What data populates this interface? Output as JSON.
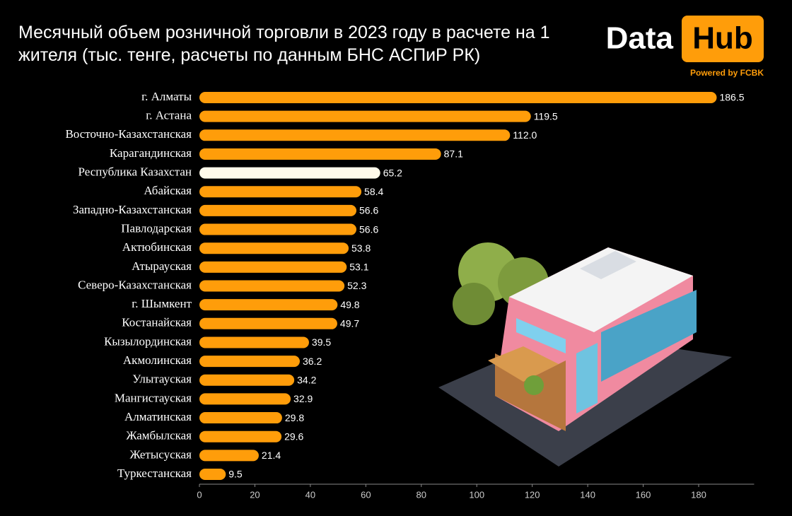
{
  "chart_data": {
    "type": "bar",
    "orientation": "horizontal",
    "title": "Месячный объем розничной торговли в 2023 году в расчете на 1 жителя (тыс. тенге, расчеты по данным БНС АСПиР РК)",
    "categories": [
      "г. Алматы",
      "г. Астана",
      "Восточно-Казахстанская",
      "Карагандинская",
      "Республика Казахстан",
      "Абайская",
      "Западно-Казахстанская",
      "Павлодарская",
      "Актюбинская",
      "Атырауская",
      "Северо-Казахстанская",
      "г. Шымкент",
      "Костанайская",
      "Кызылординская",
      "Акмолинская",
      "Улытауская",
      "Мангистауская",
      "Алматинская",
      "Жамбылская",
      "Жетысуская",
      "Туркестанская"
    ],
    "values": [
      186.5,
      119.5,
      112.0,
      87.1,
      65.2,
      58.4,
      56.6,
      56.6,
      53.8,
      53.1,
      52.3,
      49.8,
      49.7,
      39.5,
      36.2,
      34.2,
      32.9,
      29.8,
      29.6,
      21.4,
      9.5
    ],
    "value_labels": [
      "186.5",
      "119.5",
      "112.0",
      "87.1",
      "65.2",
      "58.4",
      "56.6",
      "56.6",
      "53.8",
      "53.1",
      "52.3",
      "49.8",
      "49.7",
      "39.5",
      "36.2",
      "34.2",
      "32.9",
      "29.8",
      "29.6",
      "21.4",
      "9.5"
    ],
    "colors": [
      "#ff9d0a",
      "#ff9d0a",
      "#ff9d0a",
      "#ff9d0a",
      "#fffaea",
      "#ff9d0a",
      "#ff9d0a",
      "#ff9d0a",
      "#ff9d0a",
      "#ff9d0a",
      "#ff9d0a",
      "#ff9d0a",
      "#ff9d0a",
      "#ff9d0a",
      "#ff9d0a",
      "#ff9d0a",
      "#ff9d0a",
      "#ff9d0a",
      "#ff9d0a",
      "#ff9d0a",
      "#ff9d0a"
    ],
    "xlim": [
      0,
      200
    ],
    "xticks": [
      0,
      20,
      40,
      60,
      80,
      100,
      120,
      140,
      160,
      180
    ],
    "grid": false
  },
  "logo": {
    "word1": "Data",
    "word2": "Hub",
    "tagline": "Powered by FCBK"
  }
}
